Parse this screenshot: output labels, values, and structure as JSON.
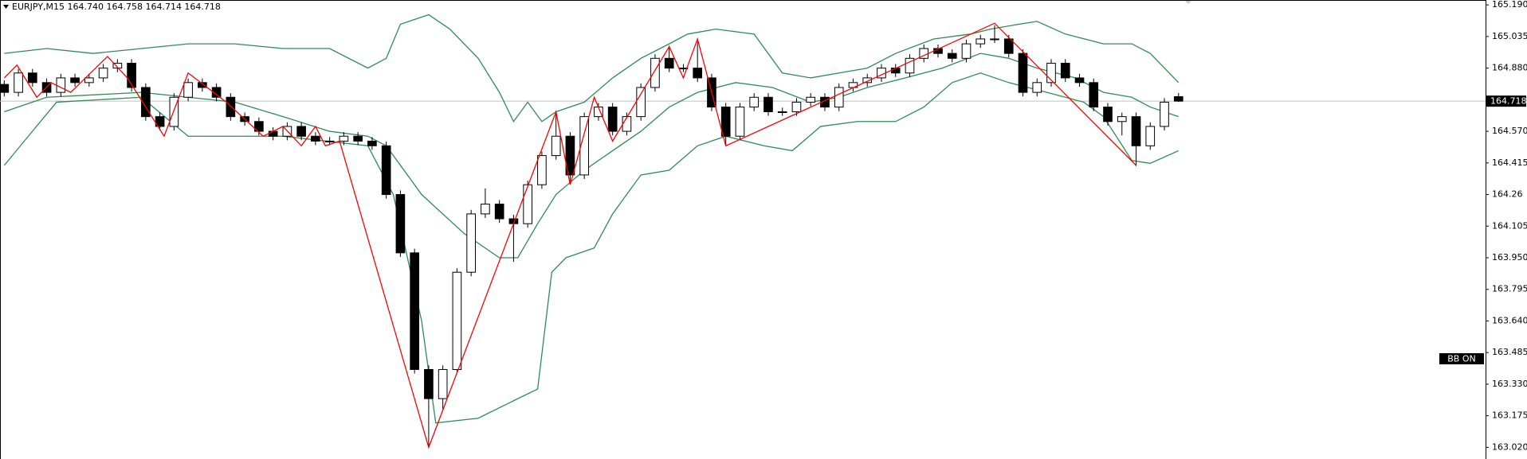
{
  "chart_data": {
    "type": "candlestick",
    "title": "EURJPY,M15  164.740 164.758 164.714 164.718",
    "indicator_label": "BB ON",
    "up_color": "#ffffff",
    "down_color": "#000000",
    "xlim": [
      -0.3,
      104.7
    ],
    "ylim": [
      162.963,
      165.214
    ],
    "yticks": [
      {
        "value": 165.19,
        "label": "165.190"
      },
      165.035,
      {
        "value": 164.88,
        "label": "164.880"
      },
      {
        "value": 164.57,
        "label": "164.570"
      },
      164.415,
      164.26,
      164.105,
      {
        "value": 163.95,
        "label": "163.950"
      },
      163.795,
      {
        "value": 163.64,
        "label": "163.640"
      },
      163.485,
      {
        "value": 163.33,
        "label": "163.330"
      },
      163.175,
      {
        "value": 163.02,
        "label": "163.020"
      }
    ],
    "last_price": 164.718,
    "open": [
      164.8,
      164.761,
      164.856,
      164.809,
      164.761,
      164.832,
      164.809,
      164.832,
      164.88,
      164.904,
      164.785,
      164.642,
      164.594,
      164.737,
      164.809,
      164.785,
      164.737,
      164.642,
      164.618,
      164.57,
      164.546,
      164.594,
      164.546,
      164.522,
      164.522,
      164.546,
      164.522,
      164.499,
      164.26,
      163.974,
      163.402,
      163.259,
      163.402,
      163.879,
      164.165,
      164.213,
      164.141,
      164.117,
      164.308,
      164.451,
      164.546,
      164.356,
      164.642,
      164.689,
      164.57,
      164.642,
      164.785,
      164.928,
      164.88,
      164.88,
      164.832,
      164.689,
      164.546,
      164.689,
      164.737,
      164.666,
      164.666,
      164.713,
      164.737,
      164.689,
      164.785,
      164.809,
      164.832,
      164.88,
      164.856,
      164.928,
      164.976,
      164.952,
      164.928,
      164.999,
      165.023,
      165.023,
      164.952,
      164.761,
      164.809,
      164.904,
      164.832,
      164.809,
      164.689,
      164.618,
      164.642,
      164.499,
      164.594,
      164.74
    ],
    "high": [
      164.82,
      164.876,
      164.876,
      164.829,
      164.852,
      164.852,
      164.852,
      164.9,
      164.924,
      164.924,
      164.805,
      164.662,
      164.757,
      164.829,
      164.829,
      164.805,
      164.757,
      164.662,
      164.638,
      164.59,
      164.614,
      164.614,
      164.566,
      164.542,
      164.566,
      164.566,
      164.542,
      164.519,
      164.28,
      163.994,
      163.422,
      163.422,
      163.899,
      164.185,
      164.29,
      164.233,
      164.161,
      164.328,
      164.471,
      164.666,
      164.566,
      164.662,
      164.709,
      164.709,
      164.662,
      164.805,
      164.948,
      164.99,
      164.9,
      165.01,
      164.852,
      164.709,
      164.709,
      164.757,
      164.757,
      164.686,
      164.733,
      164.757,
      164.757,
      164.805,
      164.829,
      164.852,
      164.9,
      164.9,
      164.948,
      164.996,
      164.996,
      164.972,
      165.019,
      165.043,
      165.09,
      165.043,
      164.972,
      164.829,
      164.924,
      164.924,
      164.852,
      164.829,
      164.709,
      164.662,
      164.662,
      164.614,
      164.733,
      164.758
    ],
    "low": [
      164.741,
      164.741,
      164.789,
      164.741,
      164.741,
      164.789,
      164.789,
      164.812,
      164.86,
      164.765,
      164.622,
      164.574,
      164.574,
      164.717,
      164.765,
      164.717,
      164.622,
      164.598,
      164.55,
      164.526,
      164.526,
      164.526,
      164.502,
      164.502,
      164.502,
      164.502,
      164.479,
      164.24,
      163.954,
      163.382,
      163.03,
      163.2,
      163.382,
      163.859,
      164.145,
      164.121,
      163.93,
      164.097,
      164.288,
      164.431,
      164.31,
      164.336,
      164.622,
      164.55,
      164.55,
      164.622,
      164.765,
      164.86,
      164.86,
      164.812,
      164.669,
      164.5,
      164.526,
      164.669,
      164.646,
      164.646,
      164.646,
      164.693,
      164.669,
      164.669,
      164.765,
      164.789,
      164.812,
      164.836,
      164.836,
      164.908,
      164.932,
      164.908,
      164.908,
      164.979,
      165.003,
      164.932,
      164.741,
      164.741,
      164.789,
      164.812,
      164.789,
      164.669,
      164.598,
      164.55,
      164.4,
      164.479,
      164.574,
      164.714
    ],
    "close": [
      164.761,
      164.856,
      164.809,
      164.761,
      164.832,
      164.809,
      164.832,
      164.88,
      164.904,
      164.785,
      164.642,
      164.594,
      164.737,
      164.809,
      164.785,
      164.737,
      164.642,
      164.618,
      164.57,
      164.546,
      164.594,
      164.546,
      164.522,
      164.522,
      164.546,
      164.522,
      164.499,
      164.26,
      163.974,
      163.402,
      163.259,
      163.402,
      163.879,
      164.165,
      164.213,
      164.141,
      164.117,
      164.308,
      164.451,
      164.546,
      164.356,
      164.642,
      164.689,
      164.57,
      164.642,
      164.785,
      164.928,
      164.88,
      164.88,
      164.832,
      164.689,
      164.546,
      164.689,
      164.737,
      164.666,
      164.666,
      164.713,
      164.737,
      164.689,
      164.785,
      164.809,
      164.832,
      164.88,
      164.856,
      164.928,
      164.976,
      164.952,
      164.928,
      164.999,
      165.023,
      165.023,
      164.952,
      164.761,
      164.809,
      164.904,
      164.832,
      164.809,
      164.689,
      164.618,
      164.642,
      164.499,
      164.594,
      164.713,
      164.718
    ],
    "lines": [
      {
        "color": "#2e8b57",
        "x": [
          0,
          3,
          6.3,
          9.7,
          13,
          16.3,
          19.7,
          23,
          25.7,
          27,
          28,
          30,
          31.5,
          33.5,
          35,
          36,
          37,
          38,
          39,
          41,
          43,
          45,
          47,
          48.3,
          50.3,
          53,
          55,
          57,
          59,
          61,
          63,
          65.7,
          68.3,
          69.7,
          71.7,
          73,
          75,
          77.7,
          79.7,
          81,
          83
        ],
        "values": [
          164.952,
          164.976,
          164.952,
          164.976,
          164.999,
          164.999,
          164.976,
          164.976,
          164.88,
          164.928,
          165.095,
          165.142,
          165.071,
          164.928,
          164.761,
          164.618,
          164.713,
          164.618,
          164.666,
          164.713,
          164.832,
          164.928,
          164.999,
          165.047,
          165.071,
          165.047,
          164.856,
          164.832,
          164.856,
          164.88,
          164.952,
          165.023,
          165.047,
          165.071,
          165.095,
          165.109,
          165.047,
          164.999,
          164.999,
          164.952,
          164.809
        ]
      },
      {
        "color": "#2e8b57",
        "x": [
          0,
          3,
          9.7,
          16.3,
          19.7,
          23,
          25.7,
          27,
          29.5,
          32.5,
          35,
          36.3,
          37.7,
          39,
          41,
          43,
          45,
          47,
          49,
          51.7,
          54.3,
          57,
          59,
          61,
          63.7,
          66.3,
          69,
          71,
          73,
          75.7,
          77.7,
          79.7,
          81,
          83
        ],
        "values": [
          164.666,
          164.737,
          164.761,
          164.713,
          164.642,
          164.57,
          164.546,
          164.499,
          164.26,
          164.069,
          163.95,
          163.95,
          164.117,
          164.26,
          164.379,
          164.475,
          164.57,
          164.689,
          164.761,
          164.809,
          164.785,
          164.713,
          164.737,
          164.785,
          164.832,
          164.88,
          164.952,
          164.928,
          164.88,
          164.832,
          164.761,
          164.737,
          164.689,
          164.642
        ]
      },
      {
        "color": "#2e8b57",
        "x": [
          0,
          1.7,
          3.7,
          9.7,
          13,
          19.7,
          25.7,
          27.5,
          29.5,
          30.5,
          33.5,
          36.3,
          37.7,
          38.7,
          39.7,
          41.7,
          43,
          45,
          47,
          49,
          51,
          53.7,
          55.7,
          57.7,
          60.3,
          63,
          65,
          67,
          69,
          71,
          73.7,
          76.3,
          77.7,
          79.7,
          81,
          83
        ],
        "values": [
          164.403,
          164.546,
          164.713,
          164.737,
          164.546,
          164.546,
          164.499,
          164.26,
          163.64,
          163.14,
          163.163,
          163.259,
          163.306,
          163.879,
          163.95,
          163.998,
          164.165,
          164.356,
          164.379,
          164.499,
          164.546,
          164.499,
          164.475,
          164.594,
          164.618,
          164.618,
          164.689,
          164.809,
          164.856,
          164.809,
          164.761,
          164.713,
          164.642,
          164.427,
          164.413,
          164.475
        ]
      },
      {
        "color": "#ff0000",
        "x": [
          0,
          0.9,
          2.3,
          3.3,
          4.7,
          7.3,
          8.7,
          11.3,
          13,
          15.7,
          18.3,
          19.7,
          21,
          22,
          22.7,
          23.7,
          30,
          39,
          40,
          41.7,
          43,
          47,
          48,
          49,
          51,
          70,
          80
        ],
        "values": [
          164.832,
          164.895,
          164.737,
          164.809,
          164.761,
          164.937,
          164.832,
          164.546,
          164.856,
          164.713,
          164.546,
          164.594,
          164.499,
          164.594,
          164.499,
          164.522,
          163.02,
          164.666,
          164.308,
          164.737,
          164.522,
          164.985,
          164.832,
          165.023,
          164.499,
          165.1,
          164.403
        ]
      }
    ]
  }
}
